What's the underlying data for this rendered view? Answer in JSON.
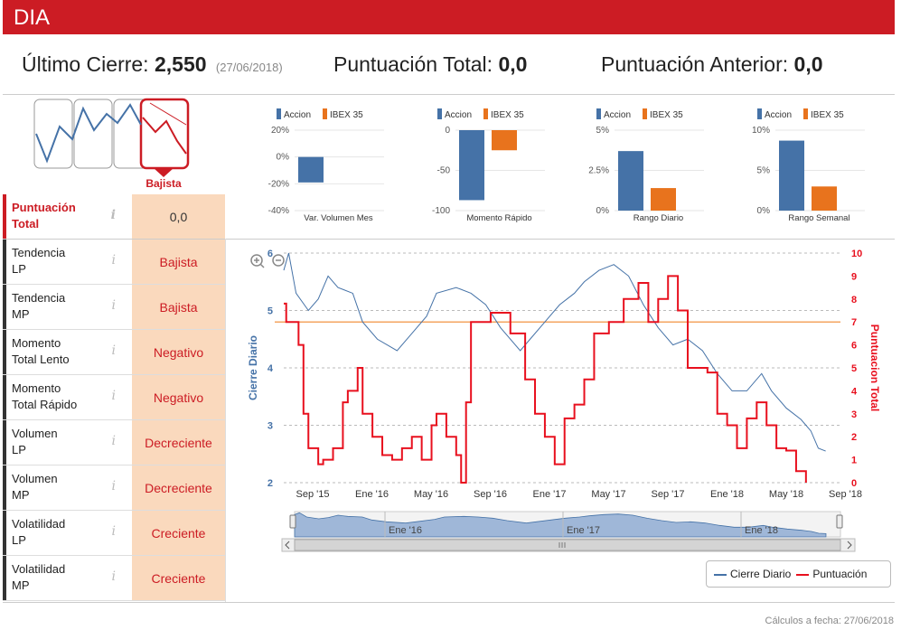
{
  "header": {
    "ticker": "DIA"
  },
  "summary": {
    "last_close_label": "Último Cierre:",
    "last_close_value": "2,550",
    "last_close_date": "(27/06/2018)",
    "total_score_label": "Puntuación Total:",
    "total_score_value": "0,0",
    "prev_score_label": "Puntuación Anterior:",
    "prev_score_value": "0,0"
  },
  "trend_widget": {
    "label": "Bajista",
    "color": "#cc1c24"
  },
  "indicators": [
    {
      "label_1": "Puntuación",
      "label_2": "Total",
      "value": "0,0"
    },
    {
      "label_1": "Tendencia",
      "label_2": "LP",
      "value": "Bajista"
    },
    {
      "label_1": "Tendencia",
      "label_2": "MP",
      "value": "Bajista"
    },
    {
      "label_1": "Momento",
      "label_2": "Total Lento",
      "value": "Negativo"
    },
    {
      "label_1": "Momento",
      "label_2": "Total Rápido",
      "value": "Negativo"
    },
    {
      "label_1": "Volumen",
      "label_2": "LP",
      "value": "Decreciente"
    },
    {
      "label_1": "Volumen",
      "label_2": "MP",
      "value": "Decreciente"
    },
    {
      "label_1": "Volatilidad",
      "label_2": "LP",
      "value": "Creciente"
    },
    {
      "label_1": "Volatilidad",
      "label_2": "MP",
      "value": "Creciente"
    }
  ],
  "info_glyph": "i",
  "colors": {
    "accion": "#4572a7",
    "ibex": "#e8731d",
    "price": "#4572a7",
    "score": "#e8101e",
    "threshold": "#f4a460",
    "brand": "#cc1c24"
  },
  "chart_data": [
    {
      "type": "bar",
      "title": "Var. Volumen Mes",
      "categories": [
        "Accion",
        "IBEX 35"
      ],
      "values": [
        -19,
        0
      ],
      "ylim": [
        -40,
        20
      ],
      "yticks": [
        "20%",
        "0%",
        "-20%",
        "-40%"
      ],
      "ytick_values": [
        20,
        0,
        -20,
        -40
      ]
    },
    {
      "type": "bar",
      "title": "Momento Rápido",
      "categories": [
        "Accion",
        "IBEX 35"
      ],
      "values": [
        -87,
        -25
      ],
      "ylim": [
        -100,
        0
      ],
      "yticks": [
        "0",
        "-50",
        "-100"
      ],
      "ytick_values": [
        0,
        -50,
        -100
      ]
    },
    {
      "type": "bar",
      "title": "Rango Diario",
      "categories": [
        "Accion",
        "IBEX 35"
      ],
      "values": [
        3.7,
        1.4
      ],
      "ylim": [
        0,
        5
      ],
      "yticks": [
        "5%",
        "2.5%",
        "0%"
      ],
      "ytick_values": [
        5,
        2.5,
        0
      ]
    },
    {
      "type": "bar",
      "title": "Rango Semanal",
      "categories": [
        "Accion",
        "IBEX 35"
      ],
      "values": [
        8.7,
        3.0
      ],
      "ylim": [
        0,
        10
      ],
      "yticks": [
        "10%",
        "5%",
        "0%"
      ],
      "ytick_values": [
        10,
        5,
        0
      ]
    },
    {
      "type": "line",
      "ylabel": "Cierre Diario",
      "ylabel_right": "Puntuacion Total",
      "ylim": [
        2,
        6
      ],
      "ylim_right": [
        0,
        10
      ],
      "yticks": [
        "6",
        "5",
        "4",
        "3",
        "2"
      ],
      "yticks_right": [
        "10",
        "9",
        "8",
        "7",
        "6",
        "5",
        "4",
        "3",
        "2",
        "1",
        "0"
      ],
      "xticks": [
        "Sep '15",
        "Ene '16",
        "May '16",
        "Sep '16",
        "Ene '17",
        "May '17",
        "Sep '17",
        "Ene '18",
        "May '18",
        "Sep '18"
      ],
      "navigator_ticks": [
        "Ene '16",
        "Ene '17",
        "Ene '18"
      ],
      "threshold": 4.8,
      "series": [
        {
          "name": "Cierre Diario",
          "axis": "left",
          "points": [
            [
              0,
              5.7
            ],
            [
              0.1,
              6.0
            ],
            [
              0.25,
              5.3
            ],
            [
              0.5,
              5.0
            ],
            [
              0.7,
              5.2
            ],
            [
              0.9,
              5.6
            ],
            [
              1.1,
              5.4
            ],
            [
              1.4,
              5.3
            ],
            [
              1.6,
              4.8
            ],
            [
              1.9,
              4.5
            ],
            [
              2.3,
              4.3
            ],
            [
              2.6,
              4.6
            ],
            [
              2.9,
              4.9
            ],
            [
              3.1,
              5.3
            ],
            [
              3.5,
              5.4
            ],
            [
              3.8,
              5.3
            ],
            [
              4.1,
              5.1
            ],
            [
              4.4,
              4.7
            ],
            [
              4.8,
              4.3
            ],
            [
              5.0,
              4.5
            ],
            [
              5.3,
              4.8
            ],
            [
              5.6,
              5.1
            ],
            [
              5.9,
              5.3
            ],
            [
              6.1,
              5.5
            ],
            [
              6.4,
              5.7
            ],
            [
              6.7,
              5.8
            ],
            [
              7.0,
              5.6
            ],
            [
              7.3,
              5.1
            ],
            [
              7.6,
              4.7
            ],
            [
              7.9,
              4.4
            ],
            [
              8.2,
              4.5
            ],
            [
              8.5,
              4.3
            ],
            [
              8.8,
              3.9
            ],
            [
              9.1,
              3.6
            ],
            [
              9.4,
              3.6
            ],
            [
              9.7,
              3.9
            ],
            [
              9.9,
              3.6
            ],
            [
              10.2,
              3.3
            ],
            [
              10.5,
              3.1
            ],
            [
              10.7,
              2.9
            ],
            [
              10.85,
              2.6
            ],
            [
              11.0,
              2.55
            ]
          ]
        },
        {
          "name": "Puntuación",
          "axis": "right",
          "points": [
            [
              0,
              7.8
            ],
            [
              0.05,
              7
            ],
            [
              0.3,
              6
            ],
            [
              0.4,
              3
            ],
            [
              0.5,
              1.5
            ],
            [
              0.7,
              0.8
            ],
            [
              0.8,
              1
            ],
            [
              1.0,
              1.5
            ],
            [
              1.2,
              3.5
            ],
            [
              1.3,
              4
            ],
            [
              1.5,
              5
            ],
            [
              1.6,
              3
            ],
            [
              1.8,
              2
            ],
            [
              2.0,
              1.2
            ],
            [
              2.2,
              1
            ],
            [
              2.4,
              1.5
            ],
            [
              2.6,
              2
            ],
            [
              2.8,
              1
            ],
            [
              3.0,
              2.5
            ],
            [
              3.1,
              3
            ],
            [
              3.3,
              2
            ],
            [
              3.5,
              1.2
            ],
            [
              3.6,
              0
            ],
            [
              3.7,
              3.5
            ],
            [
              3.8,
              7
            ],
            [
              4.2,
              7.4
            ],
            [
              4.6,
              6.5
            ],
            [
              4.9,
              4.5
            ],
            [
              5.1,
              3
            ],
            [
              5.3,
              2
            ],
            [
              5.5,
              0.8
            ],
            [
              5.7,
              2.8
            ],
            [
              5.9,
              3.4
            ],
            [
              6.1,
              4.5
            ],
            [
              6.3,
              6.5
            ],
            [
              6.6,
              7
            ],
            [
              6.9,
              8
            ],
            [
              7.2,
              8.7
            ],
            [
              7.4,
              7
            ],
            [
              7.6,
              8
            ],
            [
              7.8,
              9
            ],
            [
              8.0,
              7.5
            ],
            [
              8.2,
              5
            ],
            [
              8.6,
              4.8
            ],
            [
              8.8,
              3
            ],
            [
              9.0,
              2.5
            ],
            [
              9.2,
              1.5
            ],
            [
              9.4,
              2.8
            ],
            [
              9.6,
              3.5
            ],
            [
              9.8,
              2.5
            ],
            [
              10.0,
              1.5
            ],
            [
              10.2,
              1.4
            ],
            [
              10.4,
              0.5
            ],
            [
              10.6,
              0
            ]
          ]
        }
      ]
    }
  ],
  "legend": {
    "price": "Cierre Diario",
    "score": "Puntuación"
  },
  "footer": "Cálculos a fecha: 27/06/2018"
}
